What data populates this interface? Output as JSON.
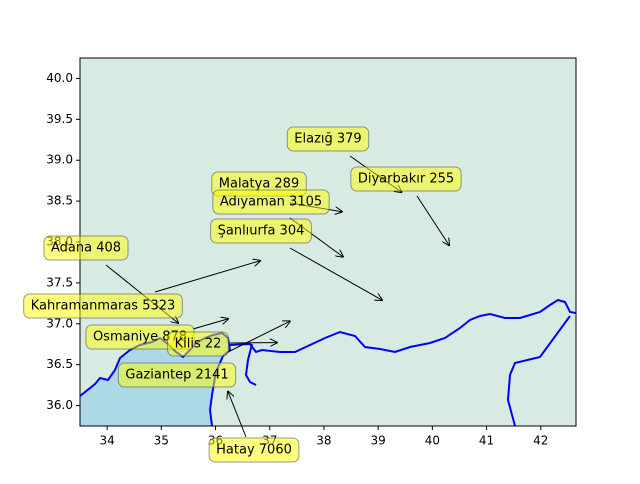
{
  "chart_data": {
    "type": "map",
    "xlim": [
      33.5,
      42.65
    ],
    "ylim": [
      35.75,
      40.25
    ],
    "xticks": [
      34,
      35,
      36,
      37,
      38,
      39,
      40,
      41,
      42
    ],
    "yticks": [
      {
        "value": 36,
        "label": "36.0"
      },
      {
        "value": 36.5,
        "label": "36.5"
      },
      {
        "value": 37,
        "label": "37.0"
      },
      {
        "value": 37.5,
        "label": "37.5"
      },
      {
        "value": 38,
        "label": "38.0"
      },
      {
        "value": 38.5,
        "label": "38.5"
      },
      {
        "value": 39,
        "label": "39.0"
      },
      {
        "value": 39.5,
        "label": "39.5"
      },
      {
        "value": 40,
        "label": "40.0"
      }
    ],
    "annotations": [
      {
        "label": "Elazığ 379",
        "x": 39.43,
        "y": 38.61
      },
      {
        "label": "Diyarbakır 255",
        "x": 40.31,
        "y": 37.96
      },
      {
        "label": "Malatya 289",
        "x": 38.33,
        "y": 38.37
      },
      {
        "label": "Adıyaman 3105",
        "x": 38.35,
        "y": 37.82
      },
      {
        "label": "Şanlıurfa 304",
        "x": 39.07,
        "y": 37.29
      },
      {
        "label": "Adana 408",
        "x": 35.31,
        "y": 37.01
      },
      {
        "label": "Kahramanmaras 5323",
        "x": 36.82,
        "y": 37.77
      },
      {
        "label": "Osmaniye 878",
        "x": 36.23,
        "y": 37.06
      },
      {
        "label": "Kilis 22",
        "x": 37.13,
        "y": 36.77
      },
      {
        "label": "Gaziantep 2141",
        "x": 37.37,
        "y": 37.03
      },
      {
        "label": "Hatay 7060",
        "x": 36.23,
        "y": 36.17
      }
    ]
  }
}
